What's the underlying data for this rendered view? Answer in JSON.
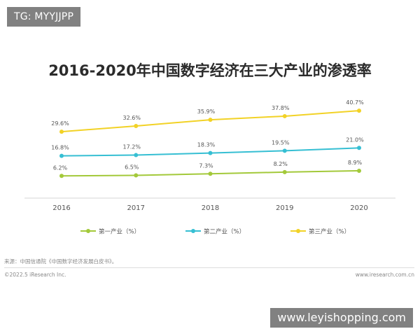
{
  "watermark": {
    "tg_label": "TG: MYYJJPP",
    "site_label": "www.leyishopping.com"
  },
  "footer": {
    "source": "来源：中国信通院《中国数字经济发展白皮书》。",
    "copyright": "©2022.5 iResearch Inc.",
    "website": "www.iresearch.com.cn"
  },
  "chart_data": {
    "type": "line",
    "title": "2016-2020年中国数字经济在三大产业的渗透率",
    "xlabel": "",
    "ylabel": "",
    "categories": [
      "2016",
      "2017",
      "2018",
      "2019",
      "2020"
    ],
    "series": [
      {
        "name": "第一产业（%）",
        "color": "#a3c93a",
        "values": [
          6.2,
          6.5,
          7.3,
          8.2,
          8.9
        ],
        "labels": [
          "6.2%",
          "6.5%",
          "7.3%",
          "8.2%",
          "8.9%"
        ]
      },
      {
        "name": "第二产业（%）",
        "color": "#36bfd3",
        "values": [
          16.8,
          17.2,
          18.3,
          19.5,
          21.0
        ],
        "labels": [
          "16.8%",
          "17.2%",
          "18.3%",
          "19.5%",
          "21.0%"
        ]
      },
      {
        "name": "第三产业（%）",
        "color": "#f2d226",
        "values": [
          29.6,
          32.6,
          35.9,
          37.8,
          40.7
        ],
        "labels": [
          "29.6%",
          "32.6%",
          "35.9%",
          "37.8%",
          "40.7%"
        ]
      }
    ],
    "legend_position": "bottom",
    "grid": false,
    "y_axis_shown": false
  }
}
